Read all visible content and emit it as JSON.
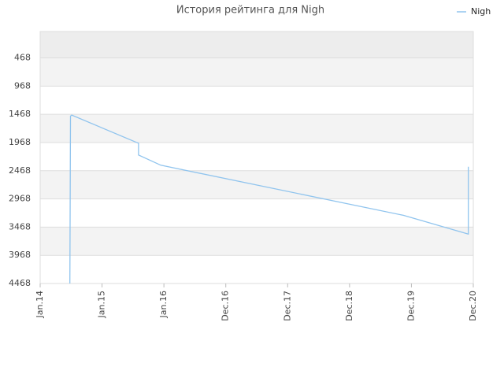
{
  "chart_data": {
    "type": "line",
    "title": "История рейтинга для Nigh",
    "x": [
      0.48,
      0.49,
      0.51,
      1.59,
      1.59,
      1.95,
      5.87,
      6.92,
      6.92
    ],
    "series": [
      {
        "name": "Nigh",
        "color": "#90c4ee",
        "values": [
          4468,
          1500,
          1482,
          1982,
          2190,
          2371,
          3259,
          3592,
          2398
        ]
      }
    ],
    "xlim": [
      0,
      7
    ],
    "xticks": [
      {
        "value": 0,
        "label": "Jan.14"
      },
      {
        "value": 1,
        "label": "Jan.15"
      },
      {
        "value": 2,
        "label": "Jan.16"
      },
      {
        "value": 3,
        "label": "Dec.16"
      },
      {
        "value": 4,
        "label": "Dec.17"
      },
      {
        "value": 5,
        "label": "Dec.18"
      },
      {
        "value": 6,
        "label": "Dec.19"
      },
      {
        "value": 7,
        "label": "Dec.20"
      }
    ],
    "ylim": [
      4468,
      0
    ],
    "yticks": [
      468,
      968,
      1468,
      1968,
      2468,
      2968,
      3468,
      3968,
      4468
    ],
    "grid": true,
    "legend": "top-right"
  }
}
